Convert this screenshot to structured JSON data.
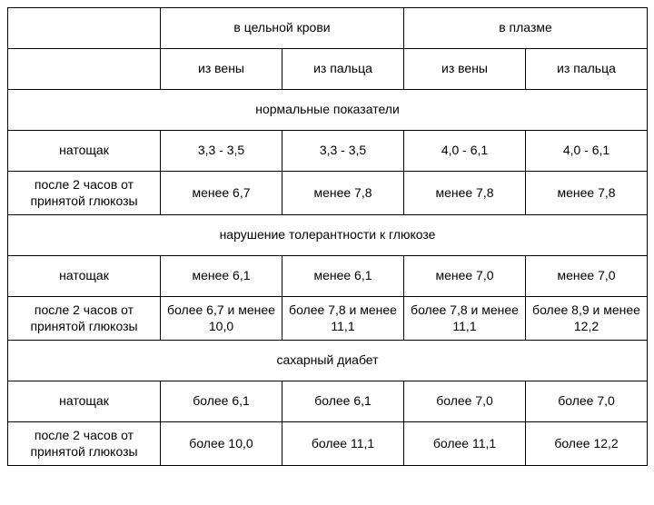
{
  "table": {
    "border_color": "#000000",
    "background_color": "#ffffff",
    "font_family": "Arial",
    "font_size_pt": 11,
    "header": {
      "blank": "",
      "group1": "в цельной крови",
      "group2": "в плазме",
      "sub1": "из вены",
      "sub2": "из пальца",
      "sub3": "из вены",
      "sub4": "из пальца"
    },
    "sections": {
      "normal": {
        "title": "нормальные показатели",
        "row1": {
          "label": "натощак",
          "c1": "3,3 - 3,5",
          "c2": "3,3 - 3,5",
          "c3": "4,0 - 6,1",
          "c4": "4,0 - 6,1"
        },
        "row2": {
          "label": "после 2 часов от принятой глюкозы",
          "c1": "менее 6,7",
          "c2": "менее 7,8",
          "c3": "менее 7,8",
          "c4": "менее 7,8"
        }
      },
      "impaired": {
        "title": "нарушение толерантности к глюкозе",
        "row1": {
          "label": "натощак",
          "c1": "менее 6,1",
          "c2": "менее 6,1",
          "c3": "менее 7,0",
          "c4": "менее 7,0"
        },
        "row2": {
          "label": "после 2 часов от принятой глюкозы",
          "c1": "более 6,7 и менее 10,0",
          "c2": "более 7,8 и менее 11,1",
          "c3": "более 7,8 и менее 11,1",
          "c4": "более 8,9 и менее 12,2"
        }
      },
      "diabetes": {
        "title": "сахарный диабет",
        "row1": {
          "label": "натощак",
          "c1": "более 6,1",
          "c2": "более 6,1",
          "c3": "более 7,0",
          "c4": "более 7,0"
        },
        "row2": {
          "label": "после 2 часов от принятой глюкозы",
          "c1": "более 10,0",
          "c2": "более 11,1",
          "c3": "более 11,1",
          "c4": "более 12,2"
        }
      }
    }
  }
}
